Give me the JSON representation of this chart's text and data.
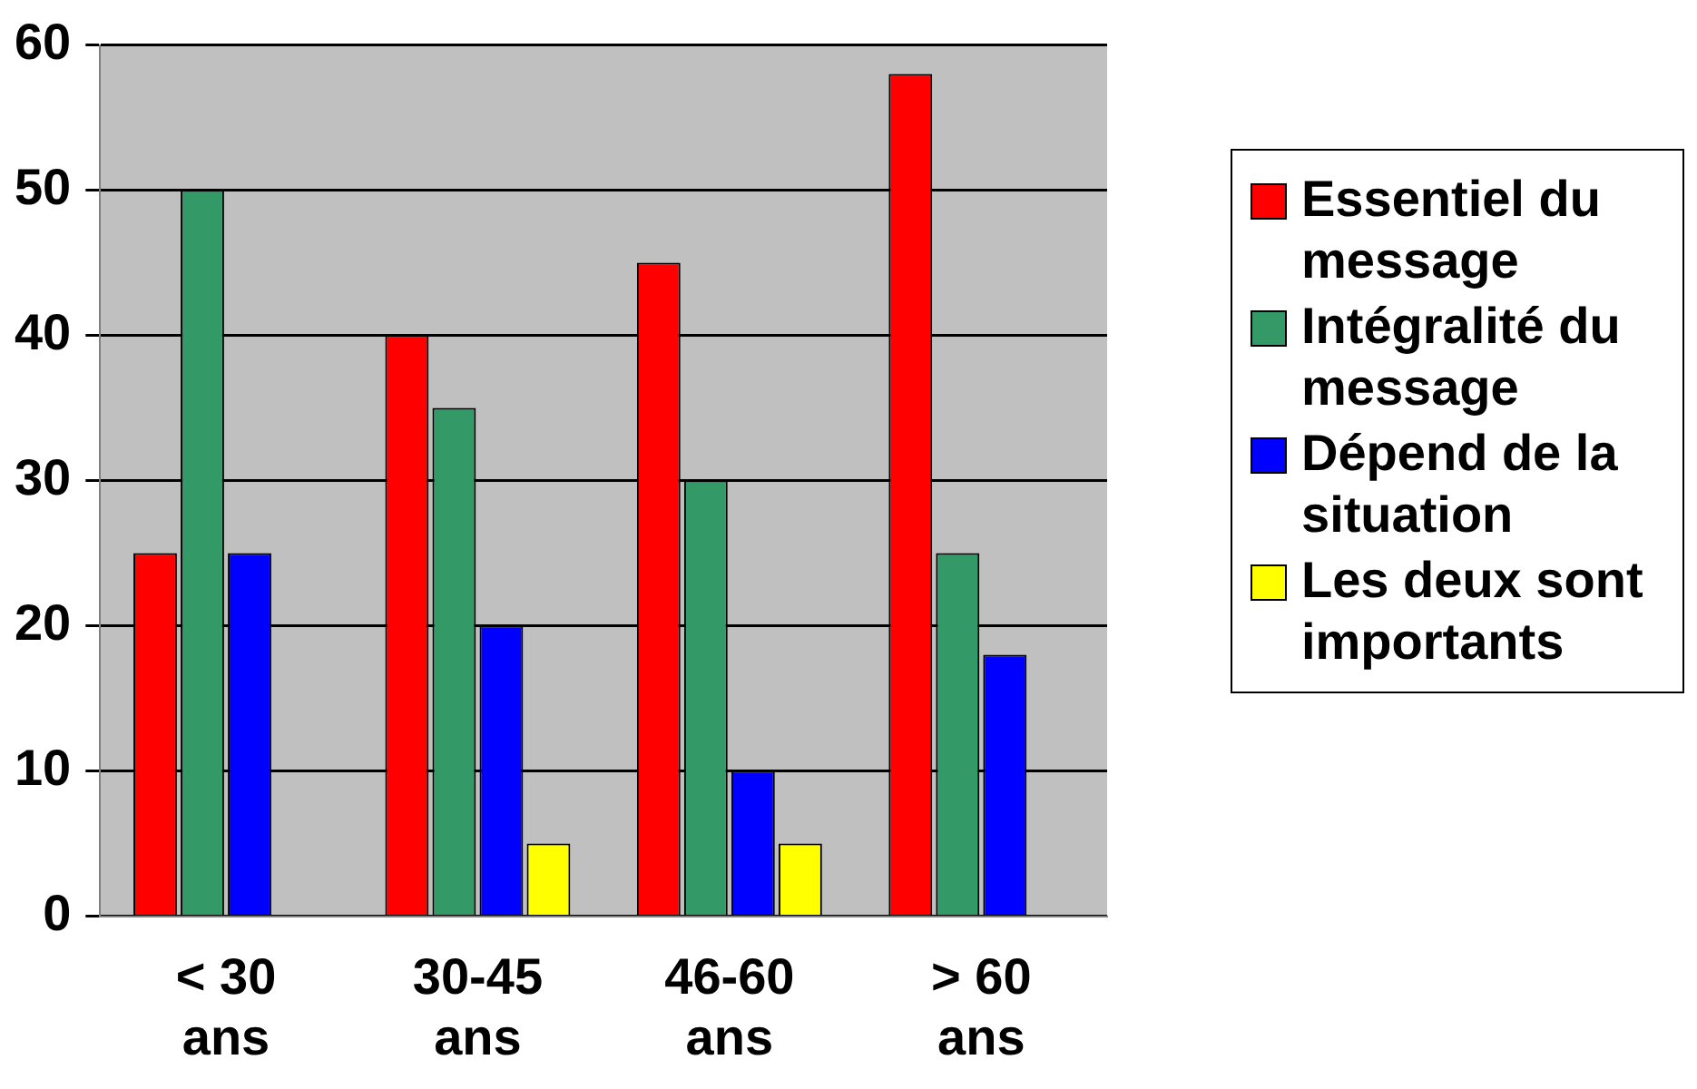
{
  "chart_data": {
    "type": "bar",
    "categories": [
      "< 30 ans",
      "30-45 ans",
      "46-60 ans",
      "> 60 ans"
    ],
    "series": [
      {
        "name": "Essentiel du message",
        "color": "#ff0000",
        "values": [
          25,
          40,
          45,
          58
        ]
      },
      {
        "name": "Intégralité du message",
        "color": "#339966",
        "values": [
          50,
          35,
          30,
          25
        ]
      },
      {
        "name": "Dépend de la situation",
        "color": "#0000ff",
        "values": [
          25,
          20,
          10,
          18
        ]
      },
      {
        "name": "Les deux sont importants",
        "color": "#ffff00",
        "values": [
          null,
          5,
          5,
          null
        ]
      }
    ],
    "ylim": [
      0,
      60
    ],
    "yticks": [
      0,
      10,
      20,
      30,
      40,
      50,
      60
    ],
    "grid": "y",
    "legend": "right"
  }
}
